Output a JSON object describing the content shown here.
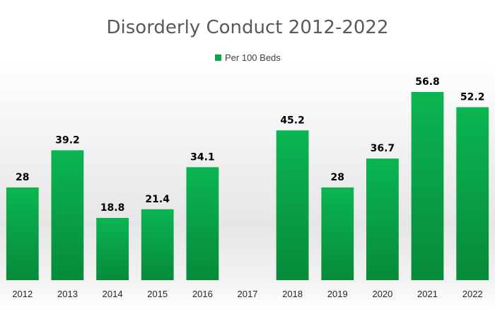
{
  "chart_data": {
    "type": "bar",
    "title": "Disorderly Conduct 2012-2022",
    "categories": [
      "2012",
      "2013",
      "2014",
      "2015",
      "2016",
      "2017",
      "2018",
      "2019",
      "2020",
      "2021",
      "2022"
    ],
    "series": [
      {
        "name": "Per 100 Beds",
        "values": [
          28,
          39.2,
          18.8,
          21.4,
          34.1,
          null,
          45.2,
          28,
          36.7,
          56.8,
          52.2
        ],
        "color": "#0aa64a"
      }
    ],
    "xlabel": "",
    "ylabel": "",
    "ylim": [
      0,
      65
    ],
    "grid": false,
    "legend": "top-center"
  }
}
